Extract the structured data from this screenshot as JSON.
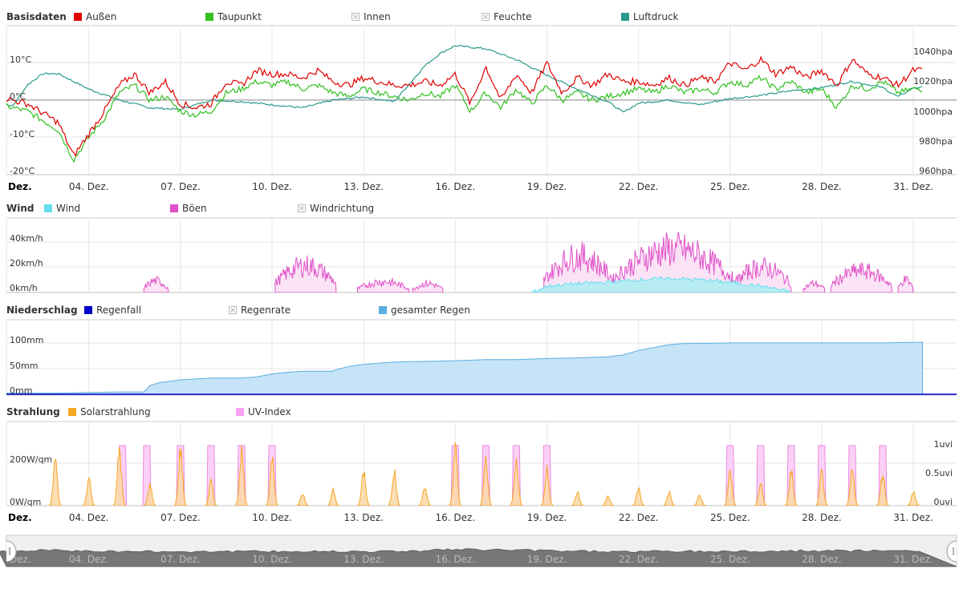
{
  "x_labels": {
    "first": "Dez.",
    "items": [
      "04. Dez.",
      "07. Dez.",
      "10. Dez.",
      "13. Dez.",
      "16. Dez.",
      "19. Dez.",
      "22. Dez.",
      "25. Dez.",
      "28. Dez.",
      "31. Dez."
    ]
  },
  "colors": {
    "aussen": "#e00000",
    "taupunkt": "#30c020",
    "luftdruck": "#2a9a8c",
    "wind": "#66ddee",
    "boeen": "#e050c8",
    "regenfall": "#0000cc",
    "gesamter_regen": "#5aaee0",
    "solar": "#f5a623",
    "uvi": "#f6a3f0",
    "disabled": "#bbbbbb",
    "grid": "#e6e6e6"
  },
  "panels": {
    "basis": {
      "title": "Basisdaten",
      "legend": [
        {
          "label": "Außen",
          "color": "#e00000",
          "enabled": true
        },
        {
          "label": "Taupunkt",
          "color": "#30c020",
          "enabled": true
        },
        {
          "label": "Innen",
          "color": "#bbbbbb",
          "enabled": false
        },
        {
          "label": "Feuchte",
          "color": "#bbbbbb",
          "enabled": false
        },
        {
          "label": "Luftdruck",
          "color": "#2a9a8c",
          "enabled": true
        }
      ],
      "y_left_ticks": [
        "10°C",
        "0°C",
        "-10°C",
        "-20°C"
      ],
      "y_right_ticks": [
        "1040hpa",
        "1020hpa",
        "1000hpa",
        "980hpa",
        "960hpa"
      ]
    },
    "wind": {
      "title": "Wind",
      "legend": [
        {
          "label": "Wind",
          "color": "#66ddee",
          "enabled": true
        },
        {
          "label": "Böen",
          "color": "#e050c8",
          "enabled": true
        },
        {
          "label": "Windrichtung",
          "color": "#bbbbbb",
          "enabled": false
        }
      ],
      "y_left_ticks": [
        "40km/h",
        "20km/h",
        "0km/h"
      ]
    },
    "rain": {
      "title": "Niederschlag",
      "legend": [
        {
          "label": "Regenfall",
          "color": "#0000cc",
          "enabled": true
        },
        {
          "label": "Regenrate",
          "color": "#bbbbbb",
          "enabled": false
        },
        {
          "label": "gesamter Regen",
          "color": "#5aaee0",
          "enabled": true
        }
      ],
      "y_left_ticks": [
        "100mm",
        "50mm",
        "0mm"
      ]
    },
    "solar": {
      "title": "Strahlung",
      "legend": [
        {
          "label": "Solarstrahlung",
          "color": "#f5a623",
          "enabled": true
        },
        {
          "label": "UV-Index",
          "color": "#f6a3f0",
          "enabled": true
        }
      ],
      "y_left_ticks": [
        "200W/qm",
        "0W/qm"
      ],
      "y_right_ticks": [
        "1uvi",
        "0.5uvi",
        "0uvi"
      ]
    }
  },
  "chart_data": [
    {
      "type": "line",
      "panel": "Basisdaten",
      "x_unit": "day of December",
      "x_range": [
        1,
        31
      ],
      "y_left": {
        "unit": "°C",
        "ylim": [
          -20,
          20
        ]
      },
      "y_right": {
        "unit": "hPa",
        "ylim": [
          960,
          1060
        ]
      },
      "series": [
        {
          "name": "Außen",
          "axis": "left",
          "x": [
            1,
            2,
            3,
            3.5,
            4,
            4.5,
            5,
            5.5,
            6,
            6.5,
            7,
            7.5,
            8,
            8.5,
            9,
            9.5,
            10,
            10.5,
            11,
            11.5,
            12,
            12.5,
            13,
            13.5,
            14,
            14.5,
            15,
            15.5,
            16,
            16.5,
            17,
            17.5,
            18,
            18.5,
            19,
            19.5,
            20,
            20.5,
            21,
            21.5,
            22,
            22.5,
            23,
            23.5,
            24,
            24.5,
            25,
            25.5,
            26,
            26.5,
            27,
            27.5,
            28,
            28.5,
            29,
            29.5,
            30,
            30.5,
            31
          ],
          "y": [
            1,
            -1,
            -6,
            -15,
            -9,
            -3,
            4,
            7,
            2,
            5,
            -1,
            -2,
            -1,
            5,
            4,
            8,
            7,
            7,
            6,
            8,
            5,
            4,
            6,
            5,
            4,
            4,
            5,
            4,
            7,
            -1,
            9,
            0,
            7,
            2,
            10,
            2,
            6,
            4,
            7,
            5,
            5,
            4,
            6,
            4,
            6,
            5,
            10,
            8,
            11,
            7,
            9,
            6,
            8,
            4,
            11,
            7,
            6,
            4,
            8
          ]
        },
        {
          "name": "Taupunkt",
          "axis": "left",
          "x": [
            1,
            2,
            3,
            3.5,
            4,
            4.5,
            5,
            5.5,
            6,
            6.5,
            7,
            7.5,
            8,
            8.5,
            9,
            9.5,
            10,
            10.5,
            11,
            11.5,
            12,
            12.5,
            13,
            13.5,
            14,
            14.5,
            15,
            15.5,
            16,
            16.5,
            17,
            17.5,
            18,
            18.5,
            19,
            19.5,
            20,
            20.5,
            21,
            21.5,
            22,
            22.5,
            23,
            23.5,
            24,
            24.5,
            25,
            25.5,
            26,
            26.5,
            27,
            27.5,
            28,
            28.5,
            29,
            29.5,
            30,
            30.5,
            31
          ],
          "y": [
            -1,
            -3,
            -8,
            -16,
            -10,
            -5,
            2,
            4,
            0,
            1,
            -3,
            -4,
            -3,
            2,
            3,
            5,
            4,
            5,
            3,
            4,
            2,
            1,
            3,
            2,
            1,
            0,
            2,
            1,
            4,
            -3,
            2,
            -2,
            3,
            -1,
            4,
            0,
            2,
            0,
            1,
            2,
            3,
            2,
            4,
            2,
            3,
            2,
            5,
            4,
            6,
            3,
            5,
            2,
            3,
            -2,
            4,
            3,
            5,
            2,
            3
          ]
        },
        {
          "name": "Luftdruck",
          "axis": "right",
          "x": [
            1,
            1.5,
            2,
            2.5,
            3,
            4,
            5,
            6,
            7,
            8,
            9,
            10,
            11,
            12,
            13,
            14,
            15,
            15.5,
            16,
            17,
            18,
            19,
            20,
            21,
            21.5,
            22,
            23,
            24,
            25,
            26,
            27,
            28,
            29,
            30,
            30.5,
            31
          ],
          "y": [
            1007,
            1004,
            1018,
            1025,
            1025,
            1015,
            1008,
            1003,
            1002,
            1008,
            1007,
            1005,
            1003,
            1008,
            1010,
            1007,
            1030,
            1038,
            1043,
            1041,
            1034,
            1024,
            1015,
            1007,
            1000,
            1006,
            1008,
            1005,
            1009,
            1011,
            1014,
            1016,
            1020,
            1016,
            1010,
            1016
          ]
        }
      ]
    },
    {
      "type": "area",
      "panel": "Wind",
      "x_unit": "day of December",
      "x_range": [
        1,
        31
      ],
      "y_left": {
        "unit": "km/h",
        "ylim": [
          0,
          55
        ]
      },
      "series": [
        {
          "name": "Wind",
          "x": [
            18.5,
            19,
            20,
            21,
            21.5,
            22,
            23,
            24,
            25,
            26,
            26.5,
            27
          ],
          "y": [
            0,
            5,
            7,
            8,
            9,
            10,
            11,
            10,
            8,
            5,
            3,
            0
          ]
        },
        {
          "name": "Böen",
          "gust_bursts": [
            {
              "x0": 5.8,
              "x1": 6.6,
              "peak": 13
            },
            {
              "x0": 10.1,
              "x1": 12.1,
              "peak": 30
            },
            {
              "x0": 12.8,
              "x1": 14.5,
              "peak": 12
            },
            {
              "x0": 14.6,
              "x1": 15.6,
              "peak": 10
            },
            {
              "x0": 18.9,
              "x1": 21.2,
              "peak": 40
            },
            {
              "x0": 21.2,
              "x1": 25.1,
              "peak": 48
            },
            {
              "x0": 25.1,
              "x1": 27.0,
              "peak": 28
            },
            {
              "x0": 27.4,
              "x1": 28.1,
              "peak": 10
            },
            {
              "x0": 28.3,
              "x1": 30.3,
              "peak": 24
            },
            {
              "x0": 30.5,
              "x1": 31.0,
              "peak": 14
            }
          ]
        }
      ]
    },
    {
      "type": "area",
      "panel": "Niederschlag",
      "x_unit": "day of December",
      "x_range": [
        1,
        31
      ],
      "y_left": {
        "unit": "mm",
        "ylim": [
          0,
          110
        ]
      },
      "series": [
        {
          "name": "gesamter Regen",
          "x": [
            1,
            3,
            4,
            5,
            5.8,
            6,
            6.3,
            7,
            8,
            9,
            9.5,
            10,
            10.5,
            11,
            12,
            12,
            12.5,
            13,
            14,
            15,
            16,
            16.5,
            17,
            18,
            19,
            20,
            21,
            21.5,
            22,
            23,
            23.5,
            24,
            25,
            26,
            27,
            28,
            29,
            30,
            31
          ],
          "y": [
            2,
            2,
            3,
            4,
            4,
            15,
            20,
            25,
            28,
            28,
            30,
            35,
            38,
            40,
            40,
            41,
            48,
            52,
            56,
            57,
            58,
            59,
            60,
            60,
            62,
            63,
            65,
            68,
            76,
            86,
            88,
            88,
            89,
            89,
            89,
            89,
            89,
            89,
            90
          ]
        },
        {
          "name": "Regenfall",
          "x": [
            1,
            31
          ],
          "y": [
            0,
            0
          ]
        }
      ]
    },
    {
      "type": "area",
      "panel": "Strahlung",
      "x_unit": "day of December",
      "x_range": [
        1,
        31
      ],
      "y_left": {
        "unit": "W/qm",
        "ylim": [
          0,
          420
        ]
      },
      "y_right": {
        "unit": "uvi",
        "ylim": [
          0,
          1.4
        ]
      },
      "series": [
        {
          "name": "Solarstrahlung",
          "days": [
            2.9,
            4.0,
            5.0,
            6.0,
            7.0,
            8.0,
            9.0,
            10.0,
            11.0,
            12.0,
            13.0,
            14.0,
            15.0,
            16.0,
            17.0,
            18.0,
            19.0,
            20.0,
            21.0,
            22.0,
            23.0,
            24.0,
            25.0,
            26.0,
            27.0,
            28.0,
            29.0,
            30.0,
            31.0
          ],
          "peaks": [
            270,
            160,
            330,
            120,
            320,
            140,
            320,
            280,
            70,
            90,
            200,
            210,
            110,
            330,
            270,
            260,
            210,
            80,
            60,
            100,
            80,
            60,
            200,
            130,
            200,
            190,
            200,
            190,
            80
          ]
        },
        {
          "name": "UV-Index",
          "days": [
            5.1,
            5.9,
            7.0,
            8.0,
            9.0,
            10.0,
            16.0,
            17.0,
            18.0,
            19.0,
            25.0,
            26.0,
            27.0,
            28.0,
            29.0,
            30.0
          ],
          "peaks": [
            1.0,
            1.0,
            1.0,
            1.0,
            1.0,
            1.0,
            1.0,
            1.0,
            1.0,
            1.0,
            1.0,
            1.0,
            1.0,
            1.0,
            1.0,
            1.0
          ]
        }
      ]
    }
  ],
  "navigator": {
    "x_labels": [
      "Dez.",
      "04. Dez.",
      "07. Dez.",
      "10. Dez.",
      "13. Dez.",
      "16. Dez.",
      "19. Dez.",
      "22. Dez.",
      "25. Dez.",
      "28. Dez.",
      "31. Dez."
    ]
  }
}
